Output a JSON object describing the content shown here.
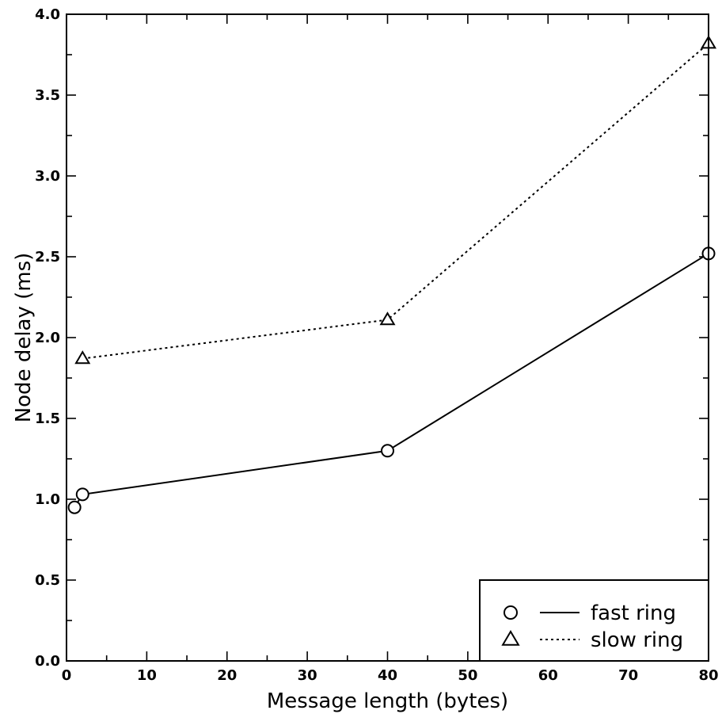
{
  "chart_data": {
    "type": "line",
    "xlabel": "Message length (bytes)",
    "ylabel": "Node delay (ms)",
    "xlim": [
      0,
      80
    ],
    "ylim": [
      0,
      4.0
    ],
    "x_ticks": [
      "0",
      "10",
      "20",
      "30",
      "40",
      "50",
      "60",
      "70",
      "80"
    ],
    "y_ticks": [
      "0.0",
      "0.5",
      "1.0",
      "1.5",
      "2.0",
      "2.5",
      "3.0",
      "3.5",
      "4.0"
    ],
    "grid": false,
    "legend_position": "bottom-right",
    "series": [
      {
        "name": "fast ring",
        "marker": "circle",
        "line_style": "solid",
        "x": [
          1,
          2,
          40,
          80
        ],
        "y": [
          0.95,
          1.03,
          1.3,
          2.52
        ]
      },
      {
        "name": "slow ring",
        "marker": "triangle",
        "line_style": "dotted",
        "x": [
          2,
          40,
          80
        ],
        "y": [
          1.87,
          2.11,
          3.82
        ]
      }
    ]
  }
}
